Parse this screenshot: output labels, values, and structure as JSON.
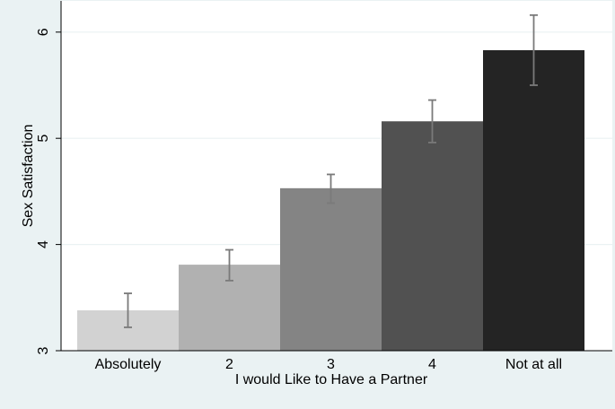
{
  "chart_data": {
    "type": "bar",
    "title": "",
    "xlabel": "I would Like to Have a Partner",
    "ylabel": "Sex Satisfaction",
    "categories": [
      "Absolutely",
      "2",
      "3",
      "4",
      "Not at all"
    ],
    "values": [
      3.38,
      3.81,
      4.53,
      5.16,
      5.83
    ],
    "error_low": [
      3.22,
      3.66,
      4.39,
      4.96,
      5.5
    ],
    "error_high": [
      3.54,
      3.95,
      4.66,
      5.36,
      6.16
    ],
    "ylim": [
      3,
      6.3
    ],
    "yticks": [
      3,
      4,
      5,
      6
    ],
    "ytick_labels": [
      "3",
      "4",
      "5",
      "6"
    ],
    "grid": true,
    "bar_colors": [
      "#d2d2d2",
      "#b1b1b1",
      "#848484",
      "#515151",
      "#242424"
    ],
    "error_bar_color": "#7a7a7a",
    "grid_color": "#eaf2f3"
  }
}
